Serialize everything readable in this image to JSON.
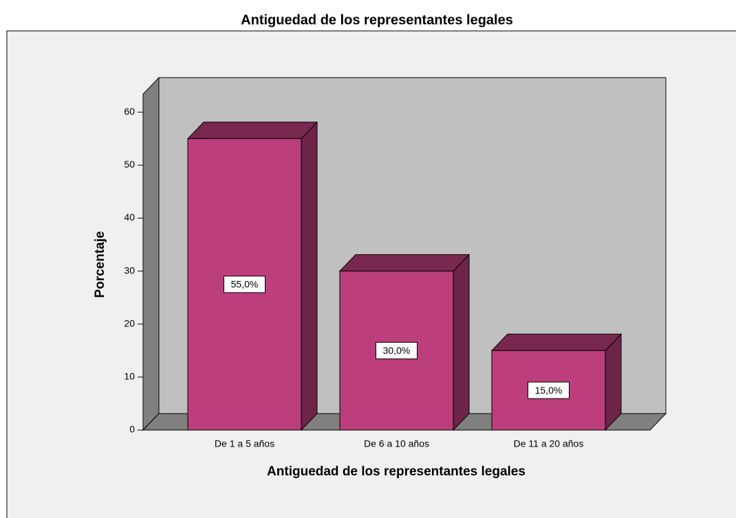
{
  "chart_data": {
    "type": "bar3d",
    "title": "Antiguedad de los representantes legales",
    "x_label": "Antiguedad de los representantes legales",
    "y_label": "Porcentaje",
    "categories": [
      "De 1 a 5 años",
      "De 6 a 10 años",
      "De 11 a 20 años"
    ],
    "values": [
      55,
      30,
      15
    ],
    "value_labels": [
      "55,0%",
      "30,0%",
      "15,0%"
    ],
    "color": "#bc3e7c",
    "ylim": [
      0,
      63.4
    ],
    "yticks": [
      0,
      10,
      20,
      30,
      40,
      50,
      60
    ]
  }
}
